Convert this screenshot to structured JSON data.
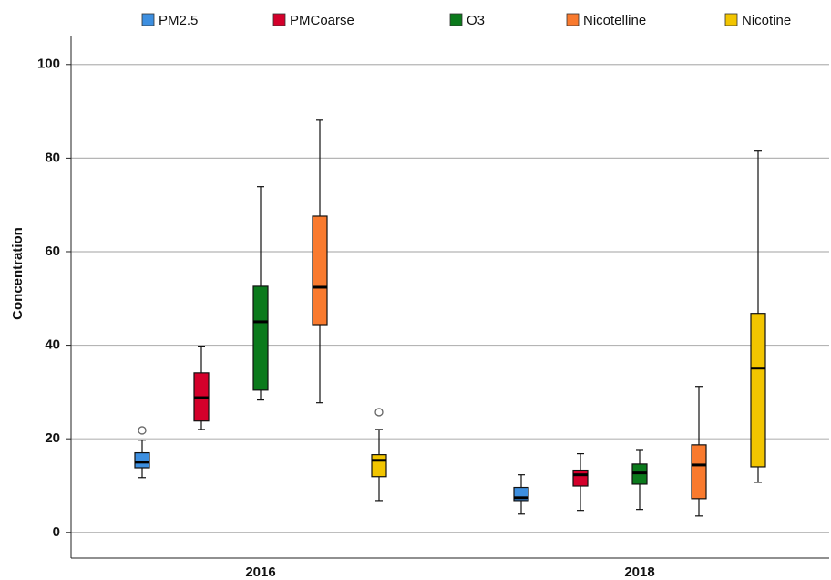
{
  "chart_data": {
    "type": "box",
    "y_label": "Concentration",
    "categories": [
      "2016",
      "2018"
    ],
    "ylim": [
      -5.5,
      106
    ],
    "yticks": [
      0,
      20,
      40,
      60,
      80,
      100
    ],
    "grid": true,
    "series": [
      {
        "name": "PM2.5",
        "color": "#3d8fe0",
        "values": [
          {
            "min": 11.7,
            "q1": 13.8,
            "median": 15.0,
            "q3": 17.0,
            "max": 19.7,
            "outliers": [
              21.8
            ]
          },
          {
            "min": 3.9,
            "q1": 6.8,
            "median": 7.4,
            "q3": 9.6,
            "max": 12.3,
            "outliers": []
          }
        ]
      },
      {
        "name": "PMCoarse",
        "color": "#d4002b",
        "values": [
          {
            "min": 22.0,
            "q1": 23.8,
            "median": 28.8,
            "q3": 34.1,
            "max": 39.8,
            "outliers": []
          },
          {
            "min": 4.7,
            "q1": 9.9,
            "median": 12.3,
            "q3": 13.3,
            "max": 16.8,
            "outliers": []
          }
        ]
      },
      {
        "name": "O3",
        "color": "#0b7a1c",
        "values": [
          {
            "min": 28.3,
            "q1": 30.4,
            "median": 45.0,
            "q3": 52.6,
            "max": 73.9,
            "outliers": []
          },
          {
            "min": 4.9,
            "q1": 10.3,
            "median": 12.7,
            "q3": 14.6,
            "max": 17.7,
            "outliers": []
          }
        ]
      },
      {
        "name": "Nicotelline",
        "color": "#f97a2e",
        "values": [
          {
            "min": 27.7,
            "q1": 44.4,
            "median": 52.4,
            "q3": 67.6,
            "max": 88.1,
            "outliers": []
          },
          {
            "min": 3.5,
            "q1": 7.2,
            "median": 14.4,
            "q3": 18.7,
            "max": 31.2,
            "outliers": []
          }
        ]
      },
      {
        "name": "Nicotine",
        "color": "#f2c500",
        "values": [
          {
            "min": 6.8,
            "q1": 11.9,
            "median": 15.4,
            "q3": 16.6,
            "max": 22.0,
            "outliers": [
              25.7
            ]
          },
          {
            "min": 10.7,
            "q1": 14.0,
            "median": 35.1,
            "q3": 46.8,
            "max": 81.5,
            "outliers": []
          }
        ]
      }
    ]
  }
}
